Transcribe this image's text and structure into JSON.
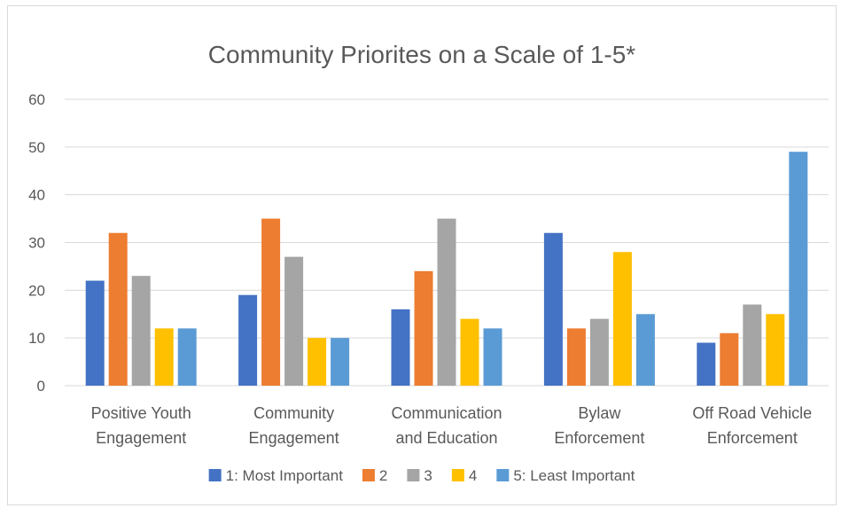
{
  "chart_data": {
    "type": "bar",
    "title": "Community Priorites on a Scale of 1-5*",
    "categories": [
      [
        "Positive Youth",
        "Engagement"
      ],
      [
        "Community",
        "Engagement"
      ],
      [
        "Communication",
        "and Education"
      ],
      [
        "Bylaw",
        "Enforcement"
      ],
      [
        "Off Road Vehicle",
        "Enforcement"
      ]
    ],
    "series": [
      {
        "name": "1: Most Important",
        "color": "#4472c4",
        "values": [
          22,
          19,
          16,
          32,
          9
        ]
      },
      {
        "name": "2",
        "color": "#ed7d31",
        "values": [
          32,
          35,
          24,
          12,
          11
        ]
      },
      {
        "name": "3",
        "color": "#a5a5a5",
        "values": [
          23,
          27,
          35,
          14,
          17
        ]
      },
      {
        "name": "4",
        "color": "#ffc000",
        "values": [
          12,
          10,
          14,
          28,
          15
        ]
      },
      {
        "name": "5: Least Important",
        "color": "#5b9bd5",
        "values": [
          12,
          10,
          12,
          15,
          49
        ]
      }
    ],
    "ylim": [
      0,
      60
    ],
    "yticks": [
      0,
      10,
      20,
      30,
      40,
      50,
      60
    ],
    "grid": true,
    "legend": "bottom"
  }
}
